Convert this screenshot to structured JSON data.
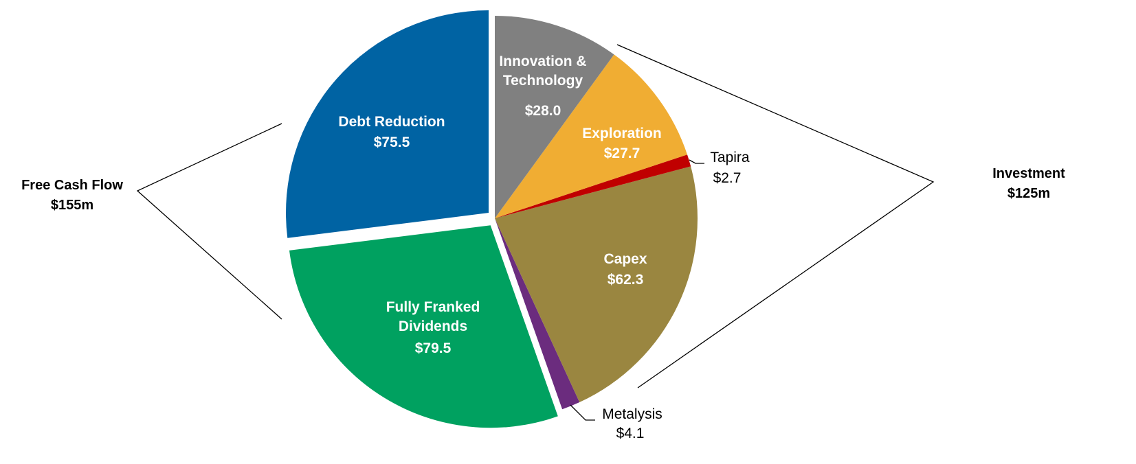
{
  "chart_data": {
    "type": "pie",
    "categories": [
      "Innovation & Technology",
      "Exploration",
      "Tapira",
      "Capex",
      "Metalysis",
      "Fully Franked Dividends",
      "Debt Reduction"
    ],
    "values": [
      28.0,
      27.7,
      2.7,
      62.3,
      4.1,
      79.5,
      75.5
    ],
    "value_labels": [
      "$28.0",
      "$27.7",
      "$2.7",
      "$62.3",
      "$4.1",
      "$79.5",
      "$75.5"
    ],
    "colors": [
      "#808080",
      "#f0ad33",
      "#c00000",
      "#9a8640",
      "#6b2c7e",
      "#00a160",
      "#0063a3"
    ],
    "annotations": [
      {
        "label": "Free Cash Flow",
        "value": "$155m"
      },
      {
        "label": "Investment",
        "value": "$125m"
      }
    ]
  }
}
